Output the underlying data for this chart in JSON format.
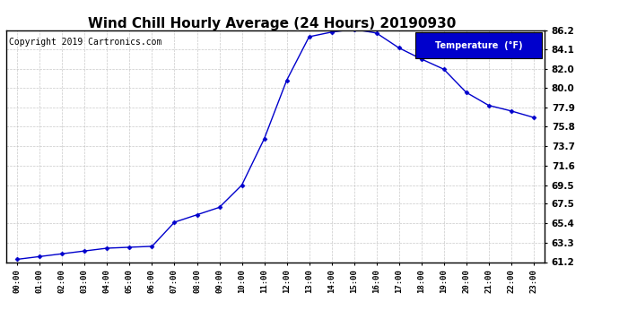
{
  "title": "Wind Chill Hourly Average (24 Hours) 20190930",
  "copyright": "Copyright 2019 Cartronics.com",
  "legend_label": "Temperature  (°F)",
  "hours": [
    "00:00",
    "01:00",
    "02:00",
    "03:00",
    "04:00",
    "05:00",
    "06:00",
    "07:00",
    "08:00",
    "09:00",
    "10:00",
    "11:00",
    "12:00",
    "13:00",
    "14:00",
    "15:00",
    "16:00",
    "17:00",
    "18:00",
    "19:00",
    "20:00",
    "21:00",
    "22:00",
    "23:00"
  ],
  "values": [
    61.5,
    61.8,
    62.1,
    62.4,
    62.7,
    62.8,
    62.9,
    65.5,
    66.3,
    67.1,
    69.5,
    74.5,
    80.8,
    85.5,
    86.0,
    86.3,
    85.9,
    84.3,
    83.1,
    82.0,
    79.5,
    78.1,
    77.5,
    76.8
  ],
  "ylim_min": 61.2,
  "ylim_max": 86.2,
  "yticks": [
    61.2,
    63.3,
    65.4,
    67.5,
    69.5,
    71.6,
    73.7,
    75.8,
    77.9,
    80.0,
    82.0,
    84.1,
    86.2
  ],
  "line_color": "#0000cc",
  "marker": "D",
  "marker_size": 2.5,
  "background_color": "#ffffff",
  "plot_bg_color": "#ffffff",
  "grid_color": "#bbbbbb",
  "title_fontsize": 11,
  "copyright_fontsize": 7,
  "legend_bg_color": "#0000cc",
  "legend_text_color": "#ffffff"
}
